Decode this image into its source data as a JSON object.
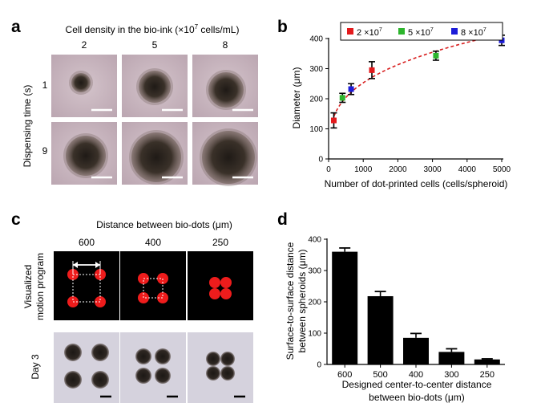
{
  "panel_labels": {
    "a": "a",
    "b": "b",
    "c": "c",
    "d": "d"
  },
  "panel_a": {
    "title_pre": "Cell density in the bio-ink (×10",
    "title_exp": "7",
    "title_post": " cells/mL)",
    "columns": [
      "2",
      "5",
      "8"
    ],
    "row_axis_label": "Dispensing time (s)",
    "rows": [
      "1",
      "9"
    ],
    "spheroid_fill": "#2a241e",
    "tile_bg": "#c9b6c0",
    "scale_bar_color": "#ffffff"
  },
  "panel_c": {
    "title": "Distance between bio-dots (μm)",
    "columns": [
      "600",
      "400",
      "250"
    ],
    "row_top_label_1": "Visualized",
    "row_top_label_2": "motion program",
    "row_bottom_label": "Day 3",
    "dot_color": "#ee1c1c"
  },
  "chart_data": [
    {
      "type": "scatter",
      "xlabel": "Number of dot-printed cells (cells/spheroid)",
      "ylabel": "Diameter (μm)",
      "xlim": [
        0,
        5000
      ],
      "ylim": [
        0,
        400
      ],
      "xticks": [
        "0",
        "1000",
        "2000",
        "3000",
        "4000",
        "5000"
      ],
      "yticks": [
        "0",
        "100",
        "200",
        "300",
        "400"
      ],
      "legend_position": "top",
      "fit_color": "#d81e1e",
      "series": [
        {
          "name_base": "2 ×10",
          "name_exp": "7",
          "color": "#e31a1c",
          "points": [
            {
              "x": 150,
              "y": 128,
              "err": 25
            },
            {
              "x": 1250,
              "y": 295,
              "err": 28
            }
          ]
        },
        {
          "name_base": "5 ×10",
          "name_exp": "7",
          "color": "#2db52d",
          "points": [
            {
              "x": 400,
              "y": 203,
              "err": 15
            },
            {
              "x": 3100,
              "y": 343,
              "err": 15
            }
          ]
        },
        {
          "name_base": "8 ×10",
          "name_exp": "7",
          "color": "#1c1cd8",
          "points": [
            {
              "x": 650,
              "y": 232,
              "err": 18
            },
            {
              "x": 5000,
              "y": 394,
              "err": 17
            }
          ]
        }
      ]
    },
    {
      "type": "bar",
      "ylabel_line1": "Surface-to-surface distance",
      "ylabel_line2": "between spheroids (μm)",
      "xlabel_line1": "Designed center-to-center distance",
      "xlabel_line2": "between bio-dots (μm)",
      "categories": [
        "600",
        "500",
        "400",
        "300",
        "250"
      ],
      "values": [
        360,
        218,
        85,
        40,
        16
      ],
      "errors": [
        12,
        15,
        14,
        10,
        2
      ],
      "ylim": [
        0,
        400
      ],
      "yticks": [
        "0",
        "100",
        "200",
        "300",
        "400"
      ],
      "bar_color": "#000000"
    }
  ]
}
